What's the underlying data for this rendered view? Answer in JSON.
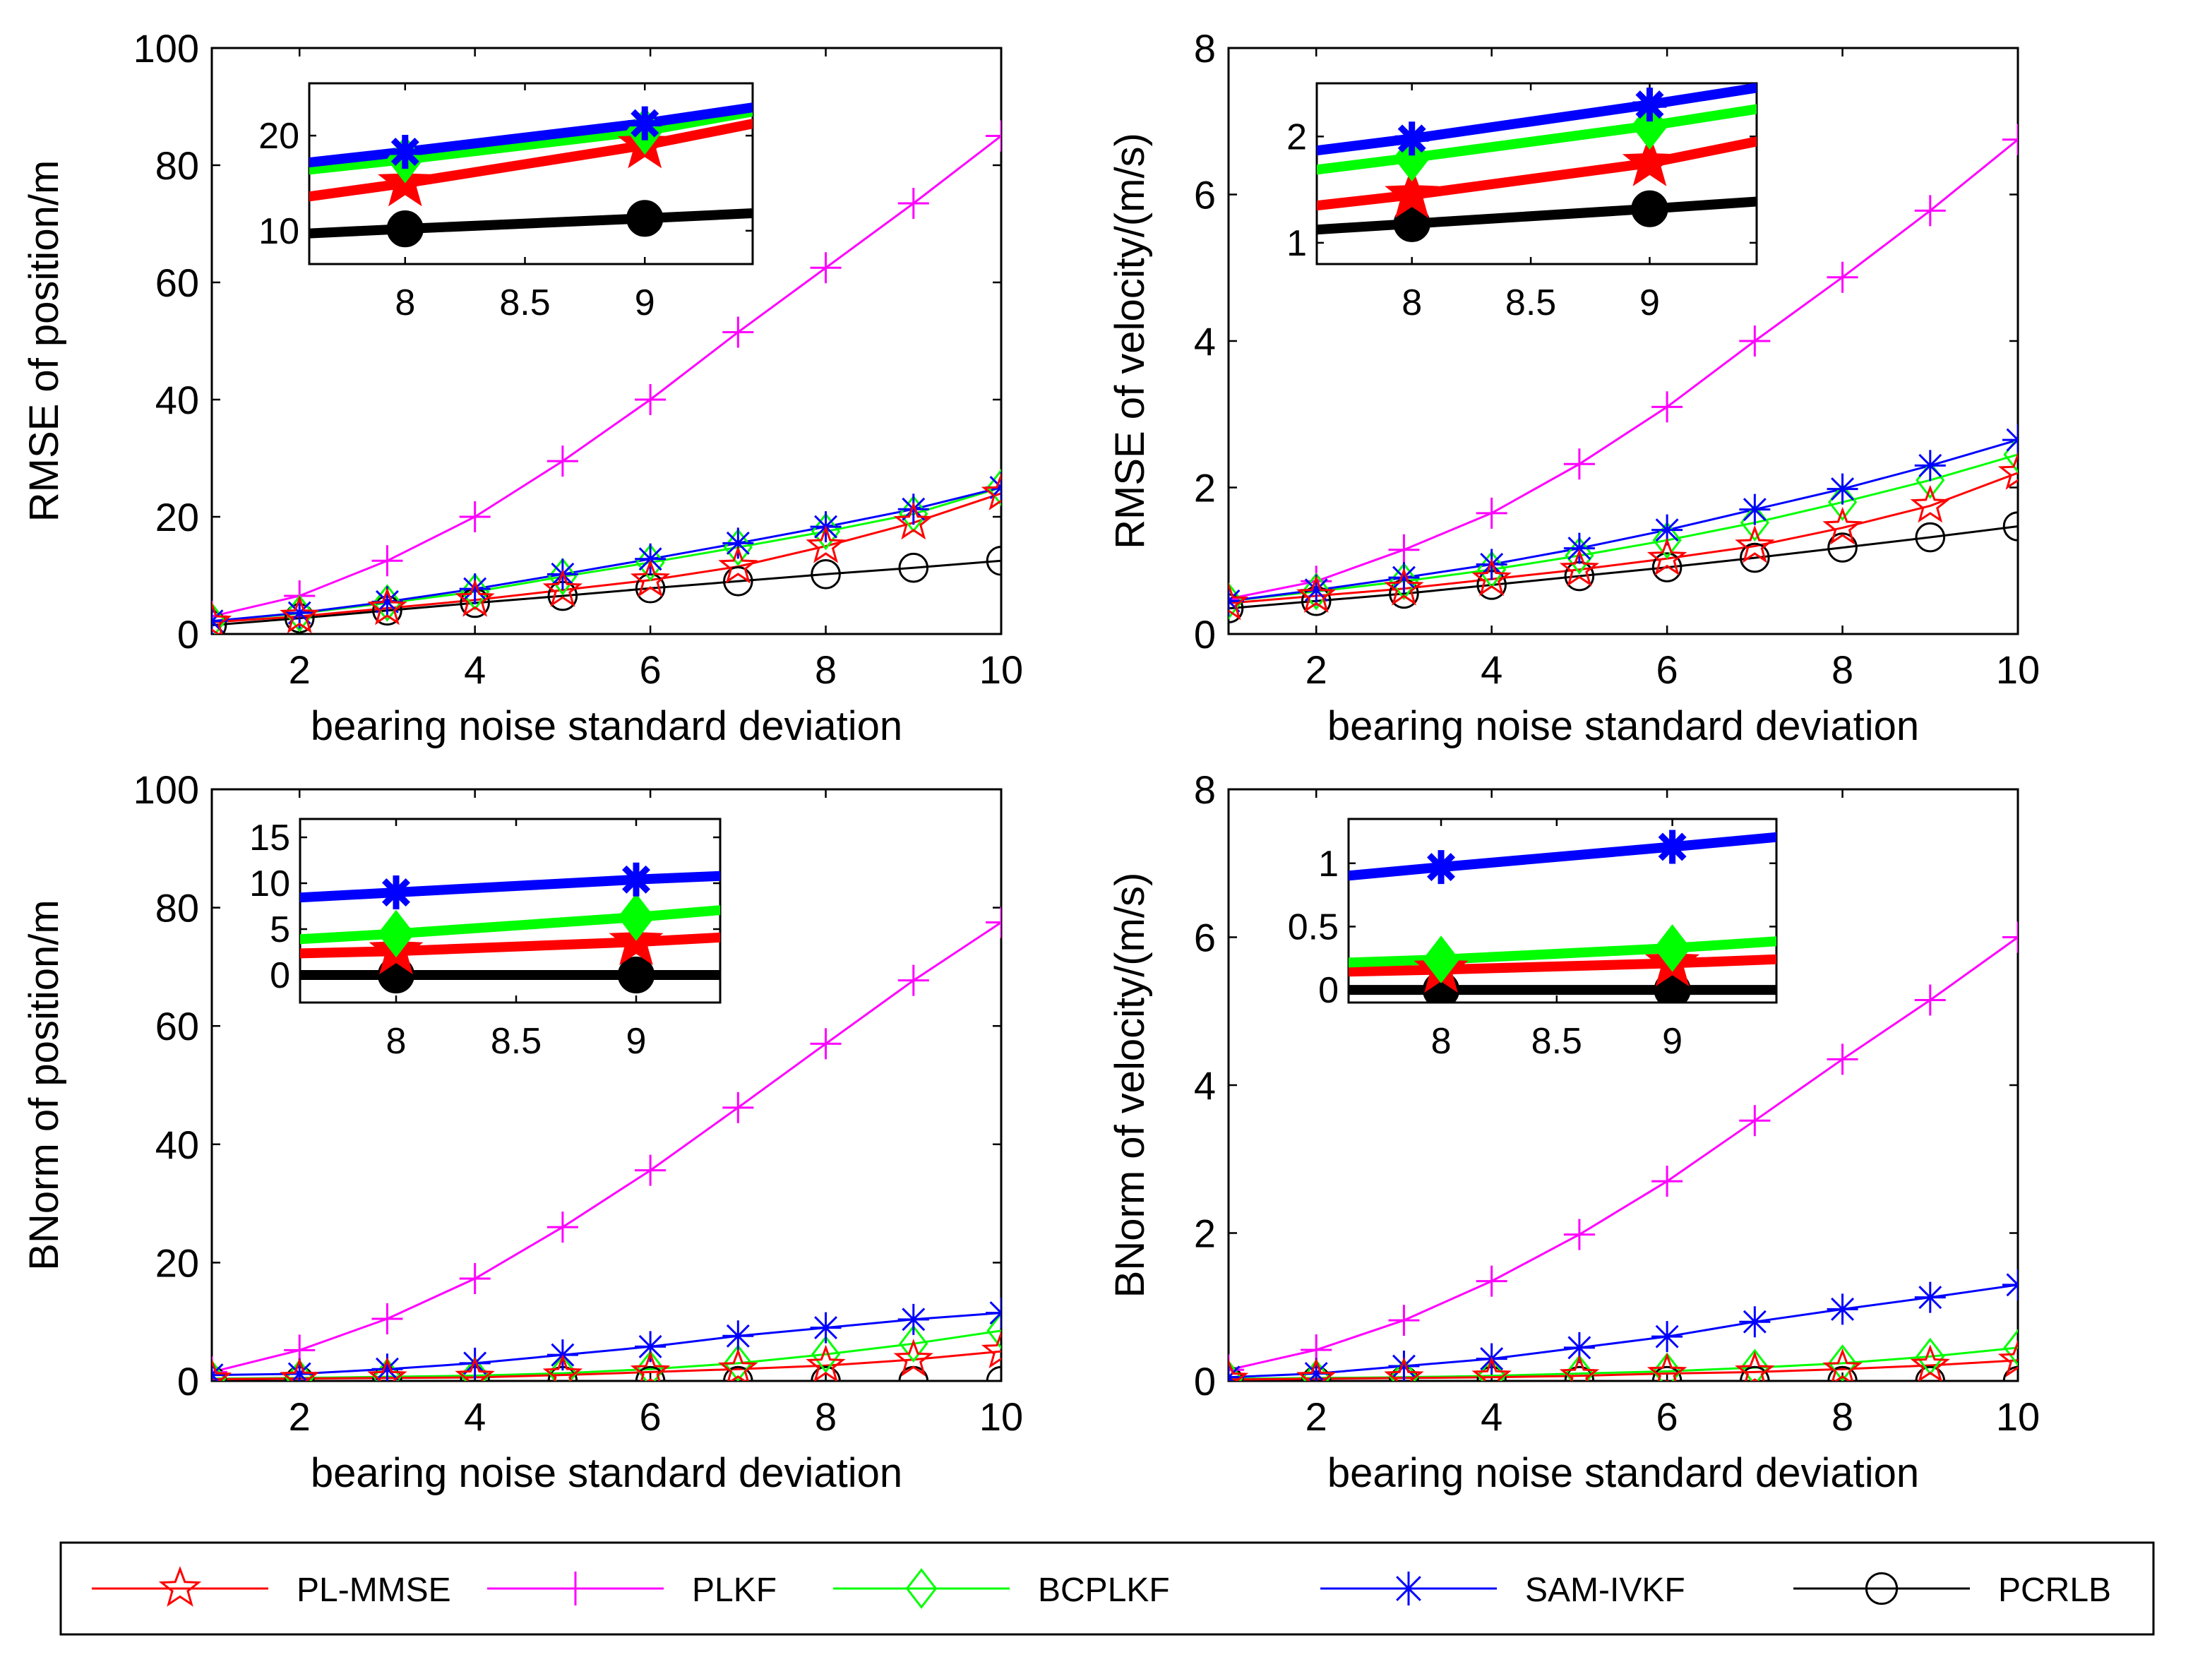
{
  "chart_data": [
    {
      "type": "line",
      "ylabel": "RMSE of position/m",
      "xlabel": "bearing noise standard deviation",
      "xlim": [
        1,
        10
      ],
      "ylim": [
        0,
        100
      ],
      "xticks": [
        2,
        4,
        6,
        8,
        10
      ],
      "yticks": [
        0,
        20,
        40,
        60,
        80,
        100
      ],
      "x": [
        1,
        2,
        3,
        4,
        5,
        6,
        7,
        8,
        9,
        10
      ],
      "series": [
        {
          "name": "PL-MMSE",
          "values": [
            2.0,
            3.0,
            4.4,
            5.8,
            7.5,
            9.2,
            11.5,
            15.0,
            19.0,
            24.0
          ]
        },
        {
          "name": "PLKF",
          "values": [
            3.0,
            6.5,
            12.5,
            20.0,
            29.5,
            40.0,
            51.5,
            62.5,
            73.5,
            85.0
          ]
        },
        {
          "name": "BCPLKF",
          "values": [
            2.2,
            3.5,
            5.3,
            7.2,
            9.8,
            12.2,
            14.8,
            17.5,
            20.5,
            25.0
          ]
        },
        {
          "name": "SAM-IVKF",
          "values": [
            2.2,
            3.6,
            5.5,
            7.7,
            10.2,
            12.8,
            15.5,
            18.3,
            21.3,
            25.0
          ]
        },
        {
          "name": "PCRLB",
          "values": [
            1.5,
            2.7,
            4.0,
            5.3,
            6.5,
            7.8,
            9.0,
            10.2,
            11.3,
            12.5
          ]
        }
      ],
      "inset": {
        "xlim": [
          7.6,
          9.45
        ],
        "ylim": [
          6.5,
          25.5
        ],
        "xticks": [
          8,
          8.5,
          9
        ],
        "yticks": [
          10,
          20
        ]
      }
    },
    {
      "type": "line",
      "ylabel": "RMSE of velocity/(m/s)",
      "xlabel": "bearing noise standard deviation",
      "xlim": [
        1,
        10
      ],
      "ylim": [
        0,
        8
      ],
      "xticks": [
        2,
        4,
        6,
        8,
        10
      ],
      "yticks": [
        0,
        2,
        4,
        6,
        8
      ],
      "x": [
        1,
        2,
        3,
        4,
        5,
        6,
        7,
        8,
        9,
        10
      ],
      "series": [
        {
          "name": "PL-MMSE",
          "values": [
            0.42,
            0.52,
            0.62,
            0.75,
            0.88,
            1.03,
            1.2,
            1.45,
            1.75,
            2.2
          ]
        },
        {
          "name": "PLKF",
          "values": [
            0.48,
            0.72,
            1.15,
            1.65,
            2.32,
            3.1,
            4.0,
            4.87,
            5.78,
            6.75
          ]
        },
        {
          "name": "BCPLKF",
          "values": [
            0.45,
            0.58,
            0.72,
            0.88,
            1.07,
            1.28,
            1.52,
            1.8,
            2.1,
            2.45
          ]
        },
        {
          "name": "SAM-IVKF",
          "values": [
            0.45,
            0.6,
            0.77,
            0.95,
            1.17,
            1.42,
            1.7,
            1.98,
            2.3,
            2.65
          ]
        },
        {
          "name": "PCRLB",
          "values": [
            0.35,
            0.45,
            0.55,
            0.67,
            0.79,
            0.91,
            1.04,
            1.18,
            1.32,
            1.47
          ]
        }
      ],
      "inset": {
        "xlim": [
          7.6,
          9.45
        ],
        "ylim": [
          0.8,
          2.5
        ],
        "xticks": [
          8,
          8.5,
          9
        ],
        "yticks": [
          1,
          2
        ]
      }
    },
    {
      "type": "line",
      "ylabel": "BNorm of position/m",
      "xlabel": "bearing noise standard deviation",
      "xlim": [
        1,
        10
      ],
      "ylim": [
        0,
        100
      ],
      "xticks": [
        2,
        4,
        6,
        8,
        10
      ],
      "yticks": [
        0,
        20,
        40,
        60,
        80,
        100
      ],
      "x": [
        1,
        2,
        3,
        4,
        5,
        6,
        7,
        8,
        9,
        10
      ],
      "series": [
        {
          "name": "PL-MMSE",
          "values": [
            0.3,
            0.4,
            0.5,
            0.6,
            1.0,
            1.5,
            2.0,
            2.6,
            3.6,
            5.0
          ]
        },
        {
          "name": "PLKF",
          "values": [
            1.5,
            5.2,
            10.5,
            17.3,
            26.0,
            35.6,
            46.2,
            57.0,
            67.7,
            77.5
          ]
        },
        {
          "name": "BCPLKF",
          "values": [
            0.4,
            0.5,
            0.7,
            0.9,
            1.3,
            2.0,
            3.0,
            4.5,
            6.3,
            8.5
          ]
        },
        {
          "name": "SAM-IVKF",
          "values": [
            1.0,
            1.2,
            2.0,
            3.0,
            4.4,
            5.8,
            7.6,
            9.0,
            10.4,
            11.5
          ]
        },
        {
          "name": "PCRLB",
          "values": [
            0.0,
            0.0,
            0.0,
            0.0,
            0.0,
            0.0,
            0.0,
            0.0,
            0.0,
            0.0
          ]
        }
      ],
      "inset": {
        "xlim": [
          7.6,
          9.35
        ],
        "ylim": [
          -3,
          17
        ],
        "xticks": [
          8,
          8.5,
          9
        ],
        "yticks": [
          0,
          5,
          10,
          15
        ]
      }
    },
    {
      "type": "line",
      "ylabel": "BNorm of velocity/(m/s)",
      "xlabel": "bearing noise standard deviation",
      "xlim": [
        1,
        10
      ],
      "ylim": [
        0,
        8
      ],
      "xticks": [
        2,
        4,
        6,
        8,
        10
      ],
      "yticks": [
        0,
        2,
        4,
        6,
        8
      ],
      "x": [
        1,
        2,
        3,
        4,
        5,
        6,
        7,
        8,
        9,
        10
      ],
      "series": [
        {
          "name": "PL-MMSE",
          "values": [
            0.02,
            0.03,
            0.04,
            0.05,
            0.07,
            0.1,
            0.12,
            0.16,
            0.21,
            0.28
          ]
        },
        {
          "name": "PLKF",
          "values": [
            0.15,
            0.42,
            0.82,
            1.35,
            1.98,
            2.7,
            3.52,
            4.35,
            5.15,
            6.0
          ]
        },
        {
          "name": "BCPLKF",
          "values": [
            0.03,
            0.04,
            0.05,
            0.07,
            0.1,
            0.13,
            0.18,
            0.24,
            0.33,
            0.45
          ]
        },
        {
          "name": "SAM-IVKF",
          "values": [
            0.05,
            0.1,
            0.2,
            0.3,
            0.45,
            0.6,
            0.8,
            0.97,
            1.13,
            1.3
          ]
        },
        {
          "name": "PCRLB",
          "values": [
            0.0,
            0.0,
            0.0,
            0.0,
            0.0,
            0.0,
            0.0,
            0.0,
            0.0,
            0.0
          ]
        }
      ],
      "inset": {
        "xlim": [
          7.6,
          9.45
        ],
        "ylim": [
          -0.1,
          1.35
        ],
        "xticks": [
          8,
          8.5,
          9
        ],
        "yticks": [
          0,
          0.5,
          1
        ]
      }
    }
  ],
  "legend": {
    "placement": "bottom",
    "entries": [
      {
        "name": "PL-MMSE",
        "color": "#ff0000",
        "marker": "star-icon"
      },
      {
        "name": "PLKF",
        "color": "#ff00ff",
        "marker": "plus-icon"
      },
      {
        "name": "BCPLKF",
        "color": "#00ff00",
        "marker": "diamond-icon"
      },
      {
        "name": "SAM-IVKF",
        "color": "#0000ff",
        "marker": "asterisk-icon"
      },
      {
        "name": "PCRLB",
        "color": "#000000",
        "marker": "circle-icon"
      }
    ]
  }
}
